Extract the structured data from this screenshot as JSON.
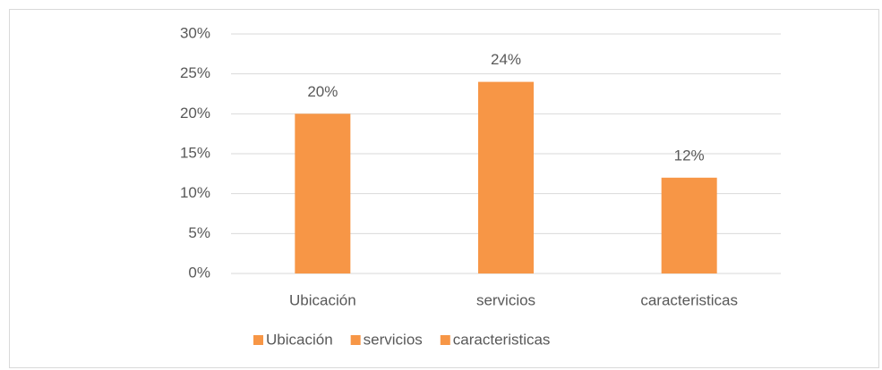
{
  "chart_data": {
    "type": "bar",
    "categories": [
      "Ubicación",
      "servicios",
      "caracteristicas"
    ],
    "values": [
      20,
      24,
      12
    ],
    "value_labels": [
      "20%",
      "24%",
      "12%"
    ],
    "color": "#f79646",
    "ylim": [
      0,
      30
    ],
    "yticks": [
      {
        "value": 0,
        "label": "0%"
      },
      {
        "value": 5,
        "label": "5%"
      },
      {
        "value": 10,
        "label": "10%"
      },
      {
        "value": 15,
        "label": "15%"
      },
      {
        "value": 20,
        "label": "20%"
      },
      {
        "value": 25,
        "label": "25%"
      },
      {
        "value": 30,
        "label": "30%"
      }
    ],
    "grid": true,
    "legend": "bottom"
  }
}
